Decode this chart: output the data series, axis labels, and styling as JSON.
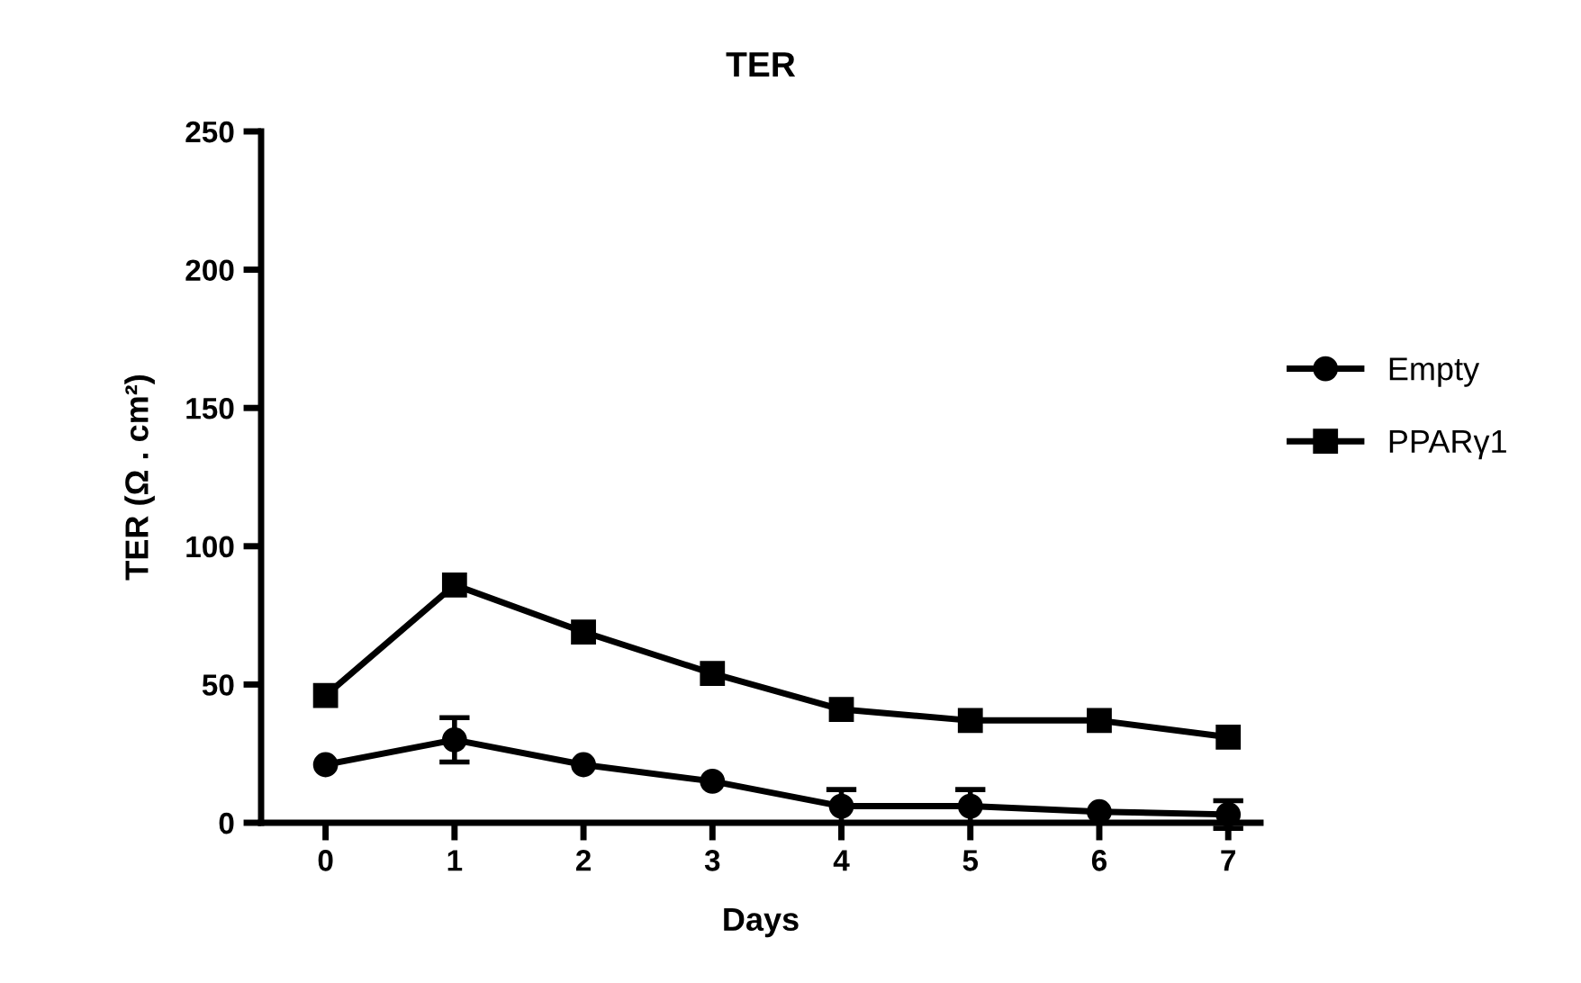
{
  "chart_data": {
    "type": "line",
    "title": "TER",
    "xlabel": "Days",
    "ylabel": "TER (Ω . cm²)",
    "x": [
      0,
      1,
      2,
      3,
      4,
      5,
      6,
      7
    ],
    "xlim": [
      -0.5,
      7.25
    ],
    "xticks": [
      0,
      1,
      2,
      3,
      4,
      5,
      6,
      7
    ],
    "ylim": [
      0,
      250
    ],
    "yticks": [
      0,
      50,
      100,
      150,
      200,
      250
    ],
    "grid": false,
    "legend": "right",
    "line_style": "solid",
    "series": [
      {
        "name": "Empty",
        "color": "#000000",
        "marker": "circle",
        "values": [
          21,
          30,
          21,
          15,
          6,
          6,
          4,
          3
        ],
        "errors": [
          null,
          8,
          null,
          null,
          6,
          6,
          null,
          5
        ]
      },
      {
        "name": "PPARγ1",
        "color": "#000000",
        "marker": "square",
        "values": [
          46,
          86,
          69,
          54,
          41,
          37,
          37,
          31
        ]
      }
    ]
  }
}
